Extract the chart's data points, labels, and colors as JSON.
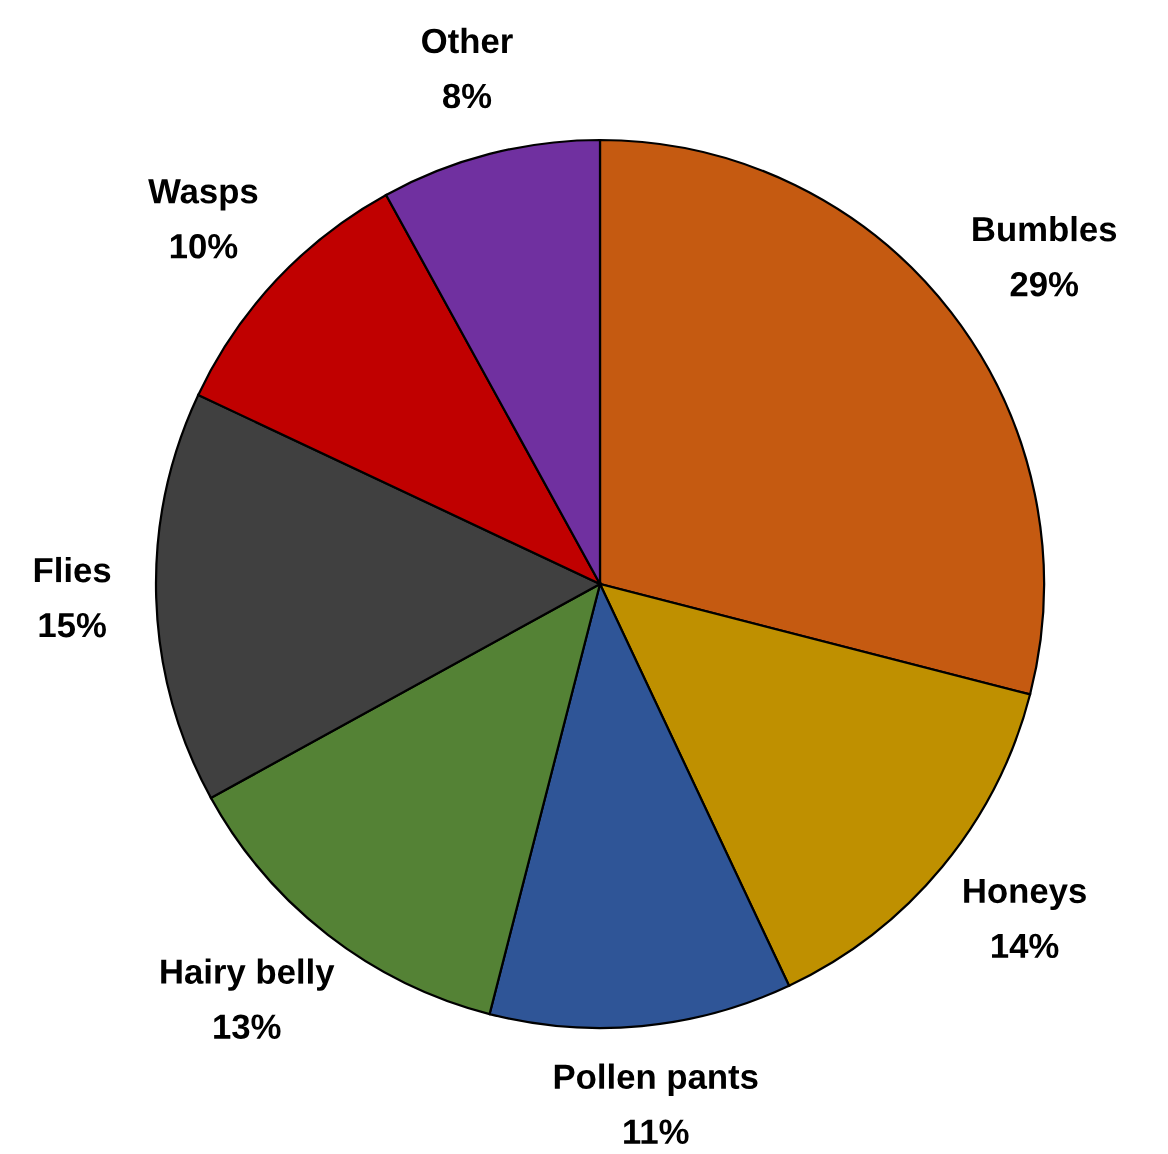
{
  "chart_data": {
    "type": "pie",
    "categories": [
      "Bumbles",
      "Honeys",
      "Pollen pants",
      "Hairy belly",
      "Flies",
      "Wasps",
      "Other"
    ],
    "values": [
      29,
      14,
      11,
      13,
      15,
      10,
      8
    ],
    "value_labels": [
      "29%",
      "14%",
      "11%",
      "13%",
      "15%",
      "10%",
      "8%"
    ],
    "colors": [
      "#c55a11",
      "#bf9000",
      "#2f5597",
      "#548235",
      "#404040",
      "#c00000",
      "#7030a0"
    ]
  }
}
